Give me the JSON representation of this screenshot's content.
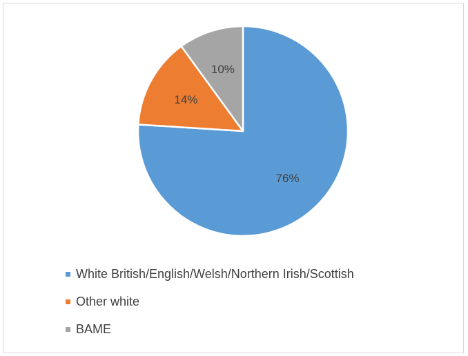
{
  "chart_data": {
    "type": "pie",
    "title": "",
    "categories": [
      "White British/English/Welsh/Northern Irish/Scottish",
      "Other white",
      "BAME"
    ],
    "values": [
      76,
      14,
      10
    ],
    "data_labels": [
      "76%",
      "14%",
      "10%"
    ],
    "colors": [
      "#5b9bd5",
      "#ed7d31",
      "#a5a5a5"
    ],
    "start_angle_deg": 0,
    "direction": "clockwise",
    "legend_position": "bottom"
  }
}
